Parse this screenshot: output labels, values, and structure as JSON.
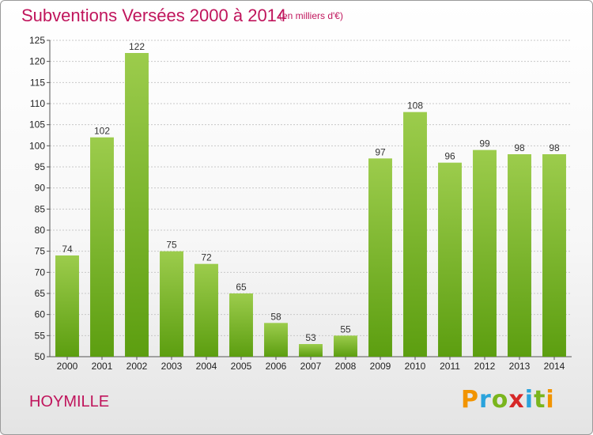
{
  "title": "Subventions Versées 2000 à 2014",
  "unit_note": "(en milliers d'€)",
  "commune": "HOYMILLE",
  "logo": {
    "letters": [
      "P",
      "r",
      "o",
      "x",
      "i",
      "t",
      "i"
    ],
    "colors": [
      "#f29400",
      "#2aa3dc",
      "#7ab51d",
      "#d62828",
      "#2aa3dc",
      "#7ab51d",
      "#f29400"
    ]
  },
  "colors": {
    "title": "#c0155c",
    "bar_top": "#9ccc4c",
    "bar_bottom": "#5c9e10",
    "grid": "#c8c8c8"
  },
  "chart_data": {
    "type": "bar",
    "categories": [
      "2000",
      "2001",
      "2002",
      "2003",
      "2004",
      "2005",
      "2006",
      "2007",
      "2008",
      "2009",
      "2010",
      "2011",
      "2012",
      "2013",
      "2014"
    ],
    "values": [
      74,
      102,
      122,
      75,
      72,
      65,
      58,
      53,
      55,
      97,
      108,
      96,
      99,
      98,
      98
    ],
    "data_labels": [
      "74",
      "102",
      "122",
      "75",
      "72",
      "65",
      "58",
      "53",
      "55",
      "97",
      "108",
      "96",
      "99",
      "98",
      "98"
    ],
    "ylim": [
      50,
      125
    ],
    "yticks": [
      "50",
      "55",
      "60",
      "65",
      "70",
      "75",
      "80",
      "85",
      "90",
      "95",
      "100",
      "105",
      "110",
      "115",
      "120",
      "125"
    ],
    "grid": true,
    "xlabel": "",
    "ylabel": ""
  }
}
